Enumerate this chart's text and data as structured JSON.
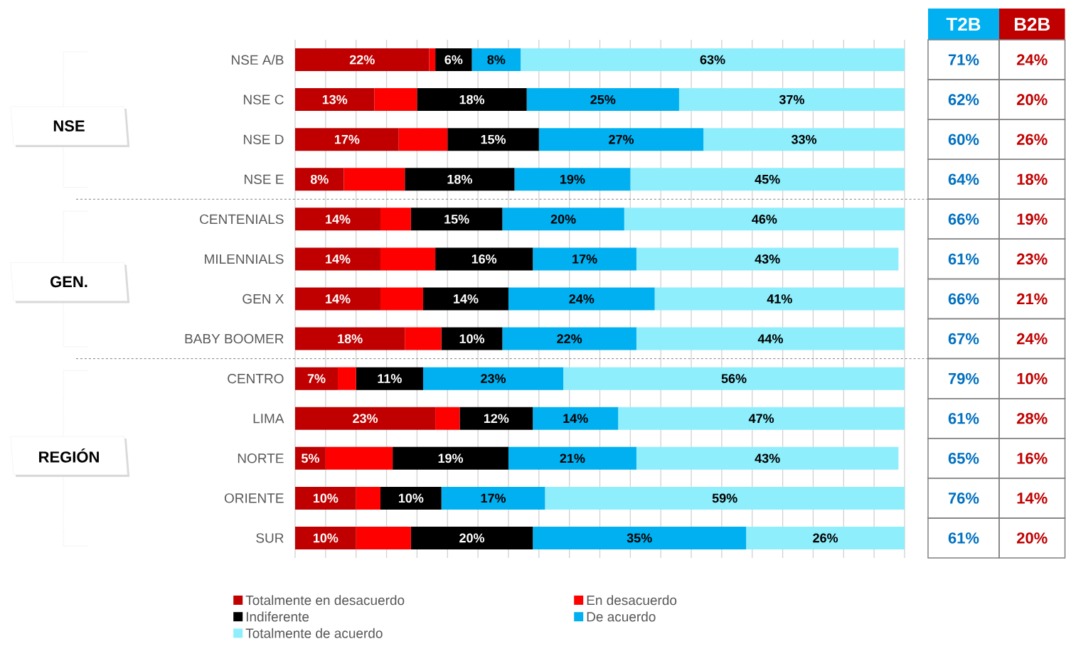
{
  "chart_data": {
    "type": "bar",
    "orientation": "horizontal",
    "stacked": true,
    "categories": [
      "NSE A/B",
      "NSE C",
      "NSE D",
      "NSE E",
      "CENTENIALS",
      "MILENNIALS",
      "GEN X",
      "BABY BOOMER",
      "CENTRO",
      "LIMA",
      "NORTE",
      "ORIENTE",
      "SUR"
    ],
    "series": [
      {
        "name": "Totalmente en desacuerdo",
        "color": "#c00000",
        "values": [
          22,
          13,
          17,
          8,
          14,
          14,
          14,
          18,
          7,
          23,
          5,
          10,
          10
        ],
        "value_labels": [
          "22%",
          "13%",
          "17%",
          "8%",
          "14%",
          "14%",
          "14%",
          "18%",
          "7%",
          "23%",
          "5%",
          "10%",
          "10%"
        ]
      },
      {
        "name": "En desacuerdo",
        "color": "#ff0000",
        "values": [
          1,
          7,
          8,
          10,
          5,
          9,
          7,
          6,
          3,
          4,
          11,
          4,
          9
        ]
      },
      {
        "name": "Indiferente",
        "color": "#000000",
        "values": [
          6,
          18,
          15,
          18,
          15,
          16,
          14,
          10,
          11,
          12,
          19,
          10,
          20
        ],
        "value_labels": [
          "6%",
          "18%",
          "15%",
          "18%",
          "15%",
          "16%",
          "14%",
          "10%",
          "11%",
          "12%",
          "19%",
          "10%",
          "20%"
        ]
      },
      {
        "name": "De acuerdo",
        "color": "#00b0f0",
        "values": [
          8,
          25,
          27,
          19,
          20,
          17,
          24,
          22,
          23,
          14,
          21,
          17,
          35
        ],
        "value_labels": [
          "8%",
          "25%",
          "27%",
          "19%",
          "20%",
          "17%",
          "24%",
          "22%",
          "23%",
          "14%",
          "21%",
          "17%",
          "35%"
        ]
      },
      {
        "name": "Totalmente de acuerdo",
        "color": "#8eeefc",
        "values": [
          63,
          37,
          33,
          45,
          46,
          43,
          41,
          44,
          56,
          47,
          43,
          59,
          26
        ],
        "value_labels": [
          "63%",
          "37%",
          "33%",
          "45%",
          "46%",
          "43%",
          "41%",
          "44%",
          "56%",
          "47%",
          "43%",
          "59%",
          "26%"
        ]
      }
    ],
    "tick_labels": "y",
    "grid": "x",
    "legend": "bottom",
    "annotations": [
      "NSE",
      "GEN.",
      "REGIÓN",
      "T2B",
      "B2B",
      "71%",
      "24%",
      "62%",
      "20%",
      "60%",
      "26%",
      "64%",
      "18%",
      "66%",
      "19%",
      "61%",
      "23%",
      "66%",
      "21%",
      "67%",
      "24%",
      "79%",
      "10%",
      "61%",
      "28%",
      "65%",
      "16%",
      "76%",
      "14%",
      "61%",
      "20%"
    ]
  }
}
